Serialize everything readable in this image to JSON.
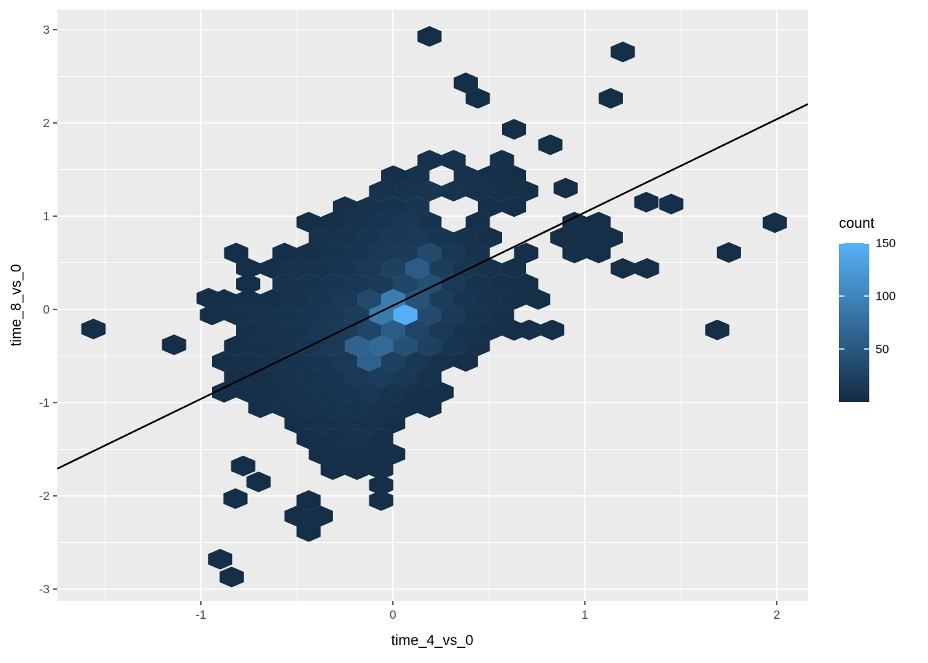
{
  "chart_data": {
    "type": "hexbin",
    "title": "",
    "xlabel": "time_4_vs_0",
    "ylabel": "time_8_vs_0",
    "xlim": [
      -1.748,
      2.162
    ],
    "ylim": [
      -3.13,
      3.21
    ],
    "x_ticks": [
      -1,
      0,
      1,
      2
    ],
    "y_ticks": [
      -3,
      -2,
      -1,
      0,
      1,
      2,
      3
    ],
    "x_minor": [
      -1.5,
      -0.5,
      0.5,
      1.5
    ],
    "y_minor": [
      -2.5,
      -1.5,
      -0.5,
      0.5,
      1.5,
      2.5
    ],
    "grid_on": true,
    "panel_bg": "#EBEBEB",
    "grid_color": "#FFFFFF",
    "abline": {
      "slope": 1,
      "intercept": 0.04,
      "color": "#000000"
    },
    "legend": {
      "title": "count",
      "position": "right",
      "ticks": [
        50,
        100,
        150
      ],
      "limits": [
        0,
        150
      ],
      "low_color": "#132B43",
      "high_color": "#56B1F7"
    },
    "lattice": {
      "x0": 0.0647,
      "x_step": 0.06295,
      "y0": -0.0593,
      "y_step": -0.16593
    },
    "rows": [
      {
        "r": -18,
        "cells": [
          [
            2,
            4
          ]
        ]
      },
      {
        "r": -17,
        "cells": [
          [
            18,
            4
          ]
        ]
      },
      {
        "r": -15,
        "cells": [
          [
            5,
            4
          ]
        ]
      },
      {
        "r": -14,
        "cells": [
          [
            6,
            4
          ],
          [
            17,
            4
          ]
        ]
      },
      {
        "r": -12,
        "cells": [
          [
            9,
            5
          ]
        ]
      },
      {
        "r": -11,
        "cells": [
          [
            12,
            4
          ]
        ]
      },
      {
        "r": -10,
        "cells": [
          [
            2,
            8
          ],
          [
            4,
            8
          ],
          [
            8,
            6
          ]
        ]
      },
      {
        "r": -9,
        "cells": [
          [
            -1,
            6
          ],
          [
            1,
            8
          ],
          [
            5,
            8
          ],
          [
            7,
            6
          ],
          [
            9,
            5
          ]
        ]
      },
      {
        "r": -8,
        "cells": [
          [
            -2,
            8
          ],
          [
            0,
            10
          ],
          [
            2,
            12
          ],
          [
            4,
            10
          ],
          [
            6,
            8
          ],
          [
            8,
            6
          ],
          [
            10,
            4
          ]
        ]
      },
      {
        "r": -7,
        "cells": [
          [
            -5,
            6
          ],
          [
            -3,
            8
          ],
          [
            -1,
            10
          ],
          [
            1,
            12
          ],
          [
            7,
            6
          ],
          [
            9,
            5
          ]
        ]
      },
      {
        "r": -6,
        "cells": [
          [
            -8,
            5
          ],
          [
            -6,
            5
          ],
          [
            -4,
            8
          ],
          [
            -2,
            12
          ],
          [
            0,
            14
          ],
          [
            2,
            10
          ],
          [
            6,
            6
          ],
          [
            14,
            5
          ],
          [
            16,
            4
          ]
        ]
      },
      {
        "r": -5,
        "cells": [
          [
            -7,
            8
          ],
          [
            -5,
            10
          ],
          [
            -3,
            12
          ],
          [
            -1,
            14
          ],
          [
            1,
            16
          ],
          [
            3,
            12
          ],
          [
            5,
            8
          ],
          [
            7,
            6
          ],
          [
            13,
            5
          ],
          [
            15,
            4
          ],
          [
            17,
            4
          ]
        ]
      },
      {
        "r": -4,
        "cells": [
          [
            -14,
            5
          ],
          [
            -10,
            5
          ],
          [
            -8,
            6
          ],
          [
            -6,
            10
          ],
          [
            -4,
            12
          ],
          [
            -2,
            16
          ],
          [
            0,
            18
          ],
          [
            2,
            35
          ],
          [
            4,
            14
          ],
          [
            6,
            8
          ],
          [
            10,
            5
          ],
          [
            14,
            5
          ],
          [
            16,
            4
          ]
        ]
      },
      {
        "r": -3,
        "cells": [
          [
            -13,
            5
          ],
          [
            -11,
            6
          ],
          [
            -9,
            8
          ],
          [
            -7,
            10
          ],
          [
            -5,
            12
          ],
          [
            -3,
            16
          ],
          [
            -1,
            25
          ],
          [
            1,
            55
          ],
          [
            3,
            20
          ],
          [
            5,
            12
          ],
          [
            7,
            8
          ],
          [
            9,
            6
          ],
          [
            18,
            4
          ],
          [
            20,
            4
          ]
        ]
      },
      {
        "r": -2,
        "cells": [
          [
            -13,
            5
          ],
          [
            -10,
            8
          ],
          [
            -8,
            10
          ],
          [
            -6,
            12
          ],
          [
            -4,
            14
          ],
          [
            -2,
            18
          ],
          [
            0,
            30
          ],
          [
            2,
            40
          ],
          [
            4,
            16
          ],
          [
            6,
            10
          ],
          [
            8,
            6
          ],
          [
            10,
            5
          ]
        ]
      },
      {
        "r": -1,
        "cells": [
          [
            -15,
            5
          ],
          [
            -13,
            6
          ],
          [
            -11,
            6
          ],
          [
            -9,
            8
          ],
          [
            -7,
            12
          ],
          [
            -5,
            16
          ],
          [
            -3,
            35
          ],
          [
            -1,
            92
          ],
          [
            1,
            45
          ],
          [
            3,
            20
          ],
          [
            5,
            12
          ],
          [
            7,
            8
          ],
          [
            9,
            6
          ],
          [
            11,
            5
          ]
        ]
      },
      {
        "r": 0,
        "cells": [
          [
            -16,
            5
          ],
          [
            -14,
            6
          ],
          [
            -12,
            8
          ],
          [
            -10,
            10
          ],
          [
            -8,
            12
          ],
          [
            -6,
            14
          ],
          [
            -4,
            20
          ],
          [
            -2,
            88
          ],
          [
            0,
            148
          ],
          [
            2,
            35
          ],
          [
            4,
            18
          ],
          [
            6,
            10
          ],
          [
            8,
            6
          ]
        ]
      },
      {
        "r": 1,
        "cells": [
          [
            -13,
            6
          ],
          [
            -11,
            8
          ],
          [
            -9,
            10
          ],
          [
            -7,
            14
          ],
          [
            -5,
            18
          ],
          [
            -3,
            30
          ],
          [
            -1,
            55
          ],
          [
            1,
            28
          ],
          [
            3,
            16
          ],
          [
            5,
            10
          ],
          [
            7,
            6
          ],
          [
            9,
            5
          ]
        ]
      },
      {
        "r": 2,
        "cells": [
          [
            -14,
            5
          ],
          [
            -12,
            6
          ],
          [
            -10,
            8
          ],
          [
            -8,
            12
          ],
          [
            -6,
            16
          ],
          [
            -4,
            62
          ],
          [
            -2,
            70
          ],
          [
            0,
            42
          ],
          [
            2,
            25
          ],
          [
            4,
            12
          ],
          [
            6,
            6
          ]
        ]
      },
      {
        "r": 3,
        "cells": [
          [
            -15,
            5
          ],
          [
            -13,
            6
          ],
          [
            -11,
            8
          ],
          [
            -9,
            10
          ],
          [
            -7,
            12
          ],
          [
            -5,
            16
          ],
          [
            -3,
            60
          ],
          [
            -1,
            25
          ],
          [
            1,
            14
          ],
          [
            3,
            8
          ],
          [
            5,
            5
          ]
        ]
      },
      {
        "r": 4,
        "cells": [
          [
            -14,
            5
          ],
          [
            -12,
            6
          ],
          [
            -10,
            8
          ],
          [
            -8,
            10
          ],
          [
            -6,
            12
          ],
          [
            -4,
            16
          ],
          [
            -2,
            20
          ],
          [
            0,
            14
          ],
          [
            2,
            8
          ]
        ]
      },
      {
        "r": 5,
        "cells": [
          [
            -15,
            4
          ],
          [
            -13,
            5
          ],
          [
            -11,
            6
          ],
          [
            -9,
            8
          ],
          [
            -7,
            10
          ],
          [
            -5,
            12
          ],
          [
            -3,
            14
          ],
          [
            -1,
            10
          ],
          [
            1,
            6
          ],
          [
            3,
            5
          ]
        ]
      },
      {
        "r": 6,
        "cells": [
          [
            -12,
            5
          ],
          [
            -10,
            6
          ],
          [
            -8,
            8
          ],
          [
            -6,
            10
          ],
          [
            -4,
            10
          ],
          [
            -2,
            8
          ],
          [
            0,
            6
          ],
          [
            2,
            5
          ]
        ]
      },
      {
        "r": 7,
        "cells": [
          [
            -9,
            5
          ],
          [
            -7,
            6
          ],
          [
            -5,
            8
          ],
          [
            -3,
            8
          ],
          [
            -1,
            5
          ]
        ]
      },
      {
        "r": 8,
        "cells": [
          [
            -8,
            5
          ],
          [
            -6,
            6
          ],
          [
            -4,
            8
          ],
          [
            -2,
            6
          ]
        ]
      },
      {
        "r": 9,
        "cells": [
          [
            -7,
            5
          ],
          [
            -5,
            6
          ],
          [
            -3,
            5
          ],
          [
            -1,
            4
          ]
        ]
      },
      {
        "r": 10,
        "cells": [
          [
            -6,
            4
          ],
          [
            -4,
            5
          ],
          [
            -2,
            4
          ]
        ]
      },
      {
        "r": 11,
        "cells": [
          [
            -2,
            4
          ]
        ]
      },
      {
        "r": 12,
        "cells": [
          [
            -8,
            5
          ],
          [
            -2,
            4
          ]
        ]
      },
      {
        "r": 13,
        "cells": [
          [
            -9,
            4
          ],
          [
            -7,
            4
          ]
        ]
      },
      {
        "r": 14,
        "cells": [
          [
            -8,
            4
          ]
        ]
      }
    ],
    "extra_hexes": [
      [
        0.9,
        1.3,
        4
      ],
      [
        1.32,
        1.15,
        4
      ],
      [
        1.45,
        1.13,
        4
      ],
      [
        1.99,
        0.93,
        4
      ],
      [
        1.75,
        0.61,
        4
      ],
      [
        1.69,
        -0.22,
        4
      ],
      [
        -1.56,
        -0.21,
        4
      ],
      [
        -1.14,
        -0.38,
        4
      ],
      [
        -0.96,
        0.12,
        4
      ],
      [
        0.71,
        -0.22,
        4
      ],
      [
        0.83,
        -0.22,
        4
      ],
      [
        -0.78,
        -1.68,
        4
      ],
      [
        -0.7,
        -1.85,
        4
      ],
      [
        -0.82,
        -2.03,
        4
      ],
      [
        -0.9,
        -2.68,
        4
      ],
      [
        -0.84,
        -2.87,
        4
      ]
    ]
  }
}
